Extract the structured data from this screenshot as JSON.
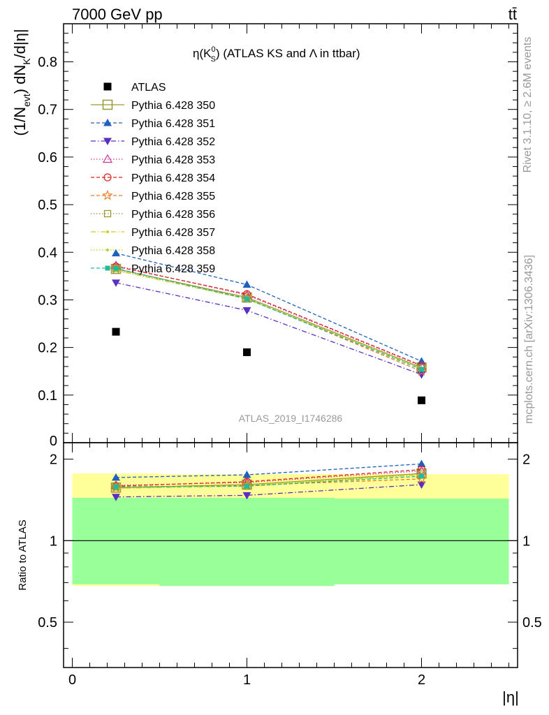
{
  "header": {
    "left": "7000 GeV pp",
    "right": "tt̄"
  },
  "side_labels": {
    "rivet": "Rivet 3.1.10, ≥ 2.6M events",
    "mcplots": "mcplots.cern.ch [arXiv:1306.3436]"
  },
  "colors": {
    "yellow_band": "#ffff99",
    "green_band": "#99ff99"
  },
  "chart_data": [
    {
      "type": "line",
      "title_parts": {
        "eta": "η(K",
        "sup": "0",
        "sub": "S",
        "rest": ") (ATLAS KS and Λ in ttbar)"
      },
      "ylabel_parts": {
        "a": "(1/N",
        "sub1": "evt",
        "b": ") dN",
        "sub2": "K",
        "c": "/d|η|"
      },
      "watermark": "ATLAS_2019_I1746286",
      "x": [
        0.25,
        1.0,
        2.0
      ],
      "xlim": [
        -0.05,
        2.55
      ],
      "ylim": [
        0,
        0.88
      ],
      "yticks": [
        0.1,
        0.2,
        0.3,
        0.4,
        0.5,
        0.6,
        0.7,
        0.8
      ],
      "ytick_labels": [
        "0.1",
        "0.2",
        "0.3",
        "0.4",
        "0.5",
        "0.6",
        "0.7",
        "0.8"
      ],
      "ytick_zero_label": "0",
      "legend_position": "top-left",
      "series": [
        {
          "name": "ATLAS",
          "marker": "square-filled",
          "dash": "none",
          "color": "#000000",
          "values": [
            0.233,
            0.19,
            0.089
          ]
        },
        {
          "name": "Pythia 6.428 350",
          "marker": "square-open-big",
          "dash": "solid",
          "color": "#999933",
          "values": [
            0.365,
            0.305,
            0.158
          ]
        },
        {
          "name": "Pythia 6.428 351",
          "marker": "triangle-up-filled",
          "dash": "dashed",
          "color": "#1f5fbf",
          "values": [
            0.398,
            0.332,
            0.171
          ]
        },
        {
          "name": "Pythia 6.428 352",
          "marker": "triangle-down-filled",
          "dash": "dashdot",
          "color": "#5b2fbf",
          "values": [
            0.336,
            0.278,
            0.143
          ]
        },
        {
          "name": "Pythia 6.428 353",
          "marker": "triangle-up-open",
          "dash": "dotted",
          "color": "#cc3399",
          "values": [
            0.372,
            0.31,
            0.161
          ]
        },
        {
          "name": "Pythia 6.428 354",
          "marker": "circle-open",
          "dash": "dashed",
          "color": "#dd2222",
          "values": [
            0.37,
            0.312,
            0.162
          ]
        },
        {
          "name": "Pythia 6.428 355",
          "marker": "star-open",
          "dash": "dashed",
          "color": "#ee7722",
          "values": [
            0.365,
            0.303,
            0.15
          ]
        },
        {
          "name": "Pythia 6.428 356",
          "marker": "square-open",
          "dash": "dotted",
          "color": "#999933",
          "values": [
            0.366,
            0.302,
            0.157
          ]
        },
        {
          "name": "Pythia 6.428 357",
          "marker": "dot",
          "dash": "dashdot",
          "color": "#cccc22",
          "values": [
            0.362,
            0.302,
            0.156
          ]
        },
        {
          "name": "Pythia 6.428 358",
          "marker": "dot",
          "dash": "dotted",
          "color": "#bbcc22",
          "values": [
            0.362,
            0.304,
            0.157
          ]
        },
        {
          "name": "Pythia 6.428 359",
          "marker": "square-filled-small",
          "dash": "dashed",
          "color": "#22bb99",
          "values": [
            0.366,
            0.302,
            0.154
          ]
        }
      ]
    },
    {
      "type": "line",
      "ylabel": "Ratio to ATLAS",
      "xlabel": "|η|",
      "x": [
        0.25,
        1.0,
        2.0
      ],
      "xlim": [
        -0.05,
        2.55
      ],
      "ylim": [
        0.34,
        2.3
      ],
      "yticks": [
        0.5,
        1,
        2
      ],
      "ytick_labels": [
        "0.5",
        "1",
        "2"
      ],
      "xticks": [
        0,
        1,
        2
      ],
      "xtick_labels": [
        "0",
        "1",
        "2"
      ],
      "bands": [
        {
          "name": "yellow",
          "bins": [
            {
              "x0": 0.0,
              "x1": 0.5,
              "lo": 0.68,
              "hi": 1.77
            },
            {
              "x0": 0.5,
              "x1": 1.5,
              "lo": 0.68,
              "hi": 1.76
            },
            {
              "x0": 1.5,
              "x1": 2.5,
              "lo": 0.69,
              "hi": 1.76
            }
          ]
        },
        {
          "name": "green",
          "bins": [
            {
              "x0": 0.0,
              "x1": 0.5,
              "lo": 0.69,
              "hi": 1.44
            },
            {
              "x0": 0.5,
              "x1": 1.5,
              "lo": 0.68,
              "hi": 1.44
            },
            {
              "x0": 1.5,
              "x1": 2.5,
              "lo": 0.69,
              "hi": 1.43
            }
          ]
        }
      ],
      "series": [
        {
          "name": "Pythia 6.428 350",
          "values": [
            1.57,
            1.61,
            1.77
          ]
        },
        {
          "name": "Pythia 6.428 351",
          "values": [
            1.71,
            1.75,
            1.92
          ]
        },
        {
          "name": "Pythia 6.428 352",
          "values": [
            1.45,
            1.47,
            1.61
          ]
        },
        {
          "name": "Pythia 6.428 353",
          "values": [
            1.6,
            1.64,
            1.81
          ]
        },
        {
          "name": "Pythia 6.428 354",
          "values": [
            1.59,
            1.65,
            1.83
          ]
        },
        {
          "name": "Pythia 6.428 355",
          "values": [
            1.57,
            1.6,
            1.69
          ]
        },
        {
          "name": "Pythia 6.428 356",
          "values": [
            1.58,
            1.59,
            1.76
          ]
        },
        {
          "name": "Pythia 6.428 357",
          "values": [
            1.56,
            1.59,
            1.75
          ]
        },
        {
          "name": "Pythia 6.428 358",
          "values": [
            1.56,
            1.6,
            1.76
          ]
        },
        {
          "name": "Pythia 6.428 359",
          "values": [
            1.58,
            1.59,
            1.73
          ]
        }
      ]
    }
  ]
}
